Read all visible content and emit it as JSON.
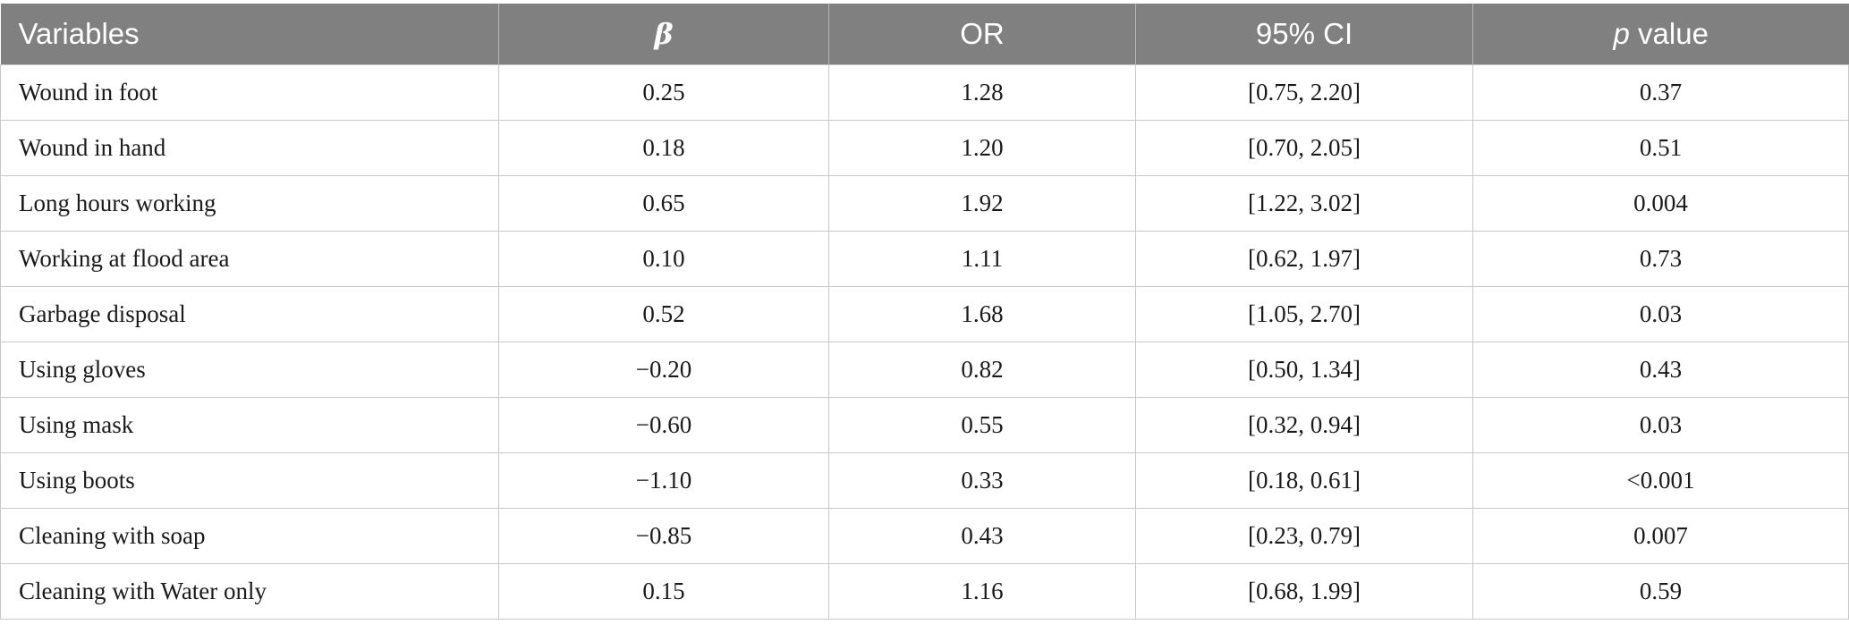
{
  "table": {
    "headers": {
      "variables": "Variables",
      "beta": "β",
      "or": "OR",
      "ci": "95% CI",
      "p_italic": "p",
      "p_rest": " value"
    },
    "rows": [
      {
        "variable": "Wound in foot",
        "beta": "0.25",
        "or": "1.28",
        "ci": "[0.75, 2.20]",
        "p": "0.37"
      },
      {
        "variable": "Wound in hand",
        "beta": "0.18",
        "or": "1.20",
        "ci": "[0.70, 2.05]",
        "p": "0.51"
      },
      {
        "variable": "Long hours working",
        "beta": "0.65",
        "or": "1.92",
        "ci": "[1.22, 3.02]",
        "p": "0.004"
      },
      {
        "variable": "Working at flood area",
        "beta": "0.10",
        "or": "1.11",
        "ci": "[0.62, 1.97]",
        "p": "0.73"
      },
      {
        "variable": "Garbage disposal",
        "beta": "0.52",
        "or": "1.68",
        "ci": "[1.05, 2.70]",
        "p": "0.03"
      },
      {
        "variable": "Using gloves",
        "beta": "−0.20",
        "or": "0.82",
        "ci": "[0.50, 1.34]",
        "p": "0.43"
      },
      {
        "variable": "Using mask",
        "beta": "−0.60",
        "or": "0.55",
        "ci": "[0.32, 0.94]",
        "p": "0.03"
      },
      {
        "variable": "Using boots",
        "beta": "−1.10",
        "or": "0.33",
        "ci": "[0.18, 0.61]",
        "p": "<0.001"
      },
      {
        "variable": "Cleaning with soap",
        "beta": "−0.85",
        "or": "0.43",
        "ci": "[0.23, 0.79]",
        "p": "0.007"
      },
      {
        "variable": "Cleaning with Water only",
        "beta": "0.15",
        "or": "1.16",
        "ci": "[0.68, 1.99]",
        "p": "0.59"
      }
    ]
  },
  "colors": {
    "header_bg": "#808080",
    "header_text": "#ffffff",
    "grid": "#c8c8c8",
    "body_text": "#1a1a1a"
  }
}
